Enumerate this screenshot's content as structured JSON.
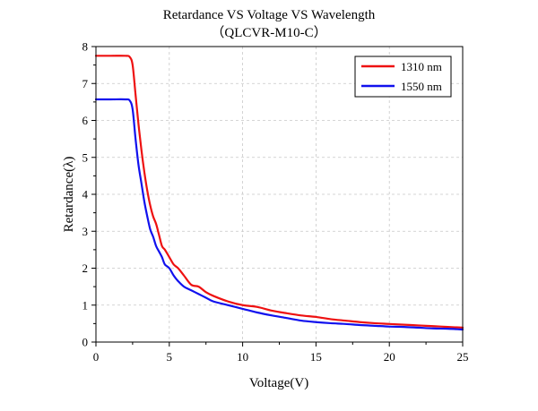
{
  "chart_data": {
    "type": "line",
    "title": "Retardance VS Voltage VS Wavelength",
    "subtitle": "（QLCVR-M10-C）",
    "xlabel": "Voltage(V)",
    "ylabel": "Retardance(λ)",
    "xlim": [
      0,
      25
    ],
    "ylim": [
      0,
      8
    ],
    "xticks": [
      0,
      5,
      10,
      15,
      20,
      25
    ],
    "xtick_labels": [
      "0",
      "5",
      "10",
      "15",
      "20",
      "25"
    ],
    "yticks": [
      0,
      1,
      2,
      3,
      4,
      5,
      6,
      7,
      8
    ],
    "ytick_labels": [
      "0",
      "1",
      "2",
      "3",
      "4",
      "5",
      "6",
      "7",
      "8"
    ],
    "grid": true,
    "legend_position": "top-right",
    "series": [
      {
        "name": "1310 nm",
        "color": "#ee1111",
        "x": [
          0,
          1,
          2,
          2.3,
          2.5,
          2.7,
          2.9,
          3.1,
          3.3,
          3.5,
          3.7,
          3.9,
          4.1,
          4.3,
          4.5,
          4.7,
          5.0,
          5.3,
          5.6,
          6.0,
          6.5,
          7.0,
          7.5,
          8.0,
          9.0,
          10.0,
          11.0,
          12.0,
          13.0,
          14.0,
          15.0,
          16.0,
          17.0,
          18.0,
          19.0,
          20.0,
          21.0,
          22.0,
          23.0,
          24.0,
          25.0
        ],
        "y": [
          7.75,
          7.75,
          7.75,
          7.72,
          7.5,
          6.7,
          5.9,
          5.2,
          4.6,
          4.1,
          3.7,
          3.4,
          3.2,
          2.9,
          2.6,
          2.5,
          2.3,
          2.1,
          2.0,
          1.8,
          1.55,
          1.5,
          1.35,
          1.25,
          1.1,
          1.0,
          0.95,
          0.85,
          0.78,
          0.72,
          0.68,
          0.62,
          0.58,
          0.54,
          0.51,
          0.49,
          0.47,
          0.45,
          0.43,
          0.41,
          0.39
        ]
      },
      {
        "name": "1550 nm",
        "color": "#1111ee",
        "x": [
          0,
          1,
          2,
          2.3,
          2.5,
          2.7,
          2.9,
          3.1,
          3.3,
          3.5,
          3.7,
          3.9,
          4.1,
          4.3,
          4.5,
          4.7,
          5.0,
          5.3,
          5.6,
          6.0,
          6.5,
          7.0,
          7.5,
          8.0,
          9.0,
          10.0,
          11.0,
          12.0,
          13.0,
          14.0,
          15.0,
          16.0,
          17.0,
          18.0,
          19.0,
          20.0,
          21.0,
          22.0,
          23.0,
          24.0,
          25.0
        ],
        "y": [
          6.57,
          6.57,
          6.57,
          6.54,
          6.3,
          5.5,
          4.8,
          4.3,
          3.8,
          3.4,
          3.05,
          2.85,
          2.6,
          2.45,
          2.3,
          2.1,
          2.0,
          1.8,
          1.65,
          1.5,
          1.4,
          1.3,
          1.2,
          1.1,
          1.0,
          0.9,
          0.8,
          0.72,
          0.65,
          0.58,
          0.54,
          0.51,
          0.49,
          0.46,
          0.44,
          0.42,
          0.41,
          0.39,
          0.37,
          0.36,
          0.34
        ]
      }
    ]
  }
}
